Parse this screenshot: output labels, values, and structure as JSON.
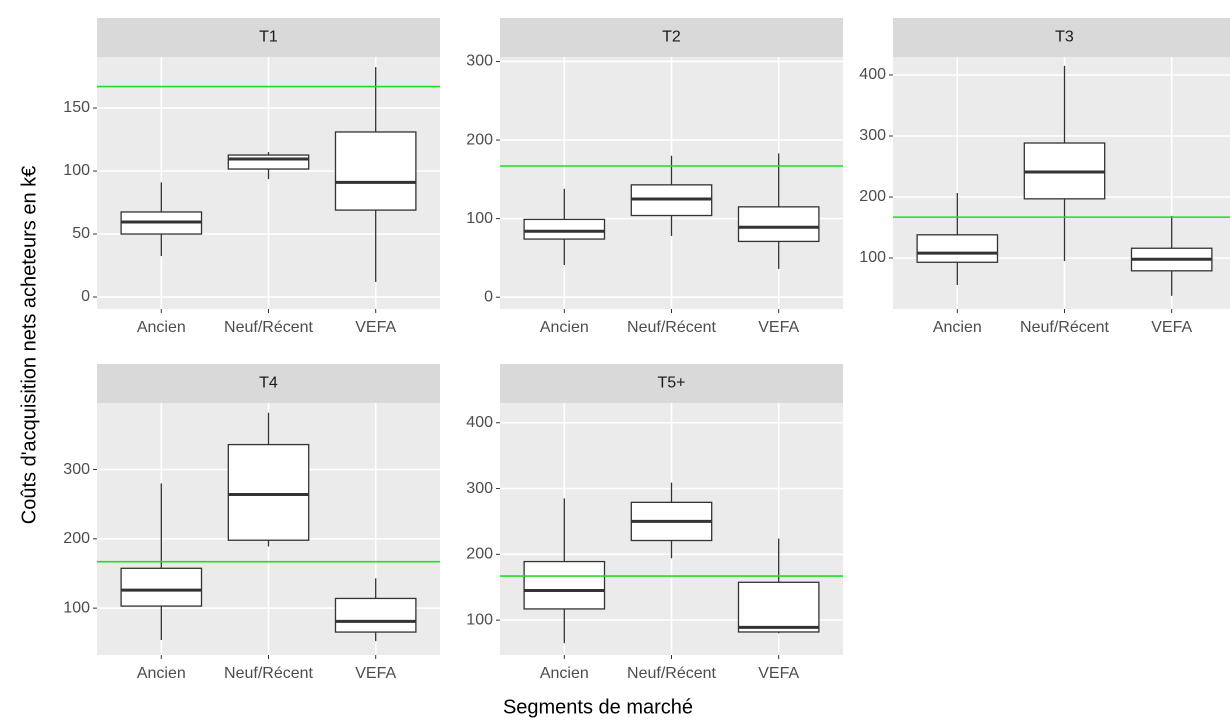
{
  "y_label": "Coûts d'acquisition nets acheteurs en k€",
  "x_label": "Segments de marché",
  "chart_data": [
    {
      "type": "boxplot",
      "title": "T1",
      "categories": [
        "Ancien",
        "Neuf/Récent",
        "VEFA"
      ],
      "boxes": [
        {
          "min": 32.5,
          "q1": 50,
          "median": 59.5,
          "q3": 67.5,
          "max": 91
        },
        {
          "min": 93.6,
          "q1": 101.6,
          "median": 109.5,
          "q3": 112.7,
          "max": 115
        },
        {
          "min": 12,
          "q1": 69,
          "median": 91,
          "q3": 131,
          "max": 182.5
        }
      ],
      "ylim": [
        -9.5,
        190.5
      ],
      "yticks": [
        0,
        50,
        100,
        150
      ],
      "reference_line": {
        "value": 167,
        "color": "#22dd22"
      },
      "grid": true
    },
    {
      "type": "boxplot",
      "title": "T2",
      "categories": [
        "Ancien",
        "Neuf/Récent",
        "VEFA"
      ],
      "boxes": [
        {
          "min": 41,
          "q1": 74,
          "median": 84,
          "q3": 99,
          "max": 138
        },
        {
          "min": 78,
          "q1": 104,
          "median": 125,
          "q3": 143,
          "max": 180
        },
        {
          "min": 36,
          "q1": 71,
          "median": 89,
          "q3": 115,
          "max": 183
        }
      ],
      "ylim": [
        -15,
        305.7
      ],
      "yticks": [
        0,
        100,
        200,
        300
      ],
      "reference_line": {
        "value": 167,
        "color": "#22dd22"
      },
      "grid": true
    },
    {
      "type": "boxplot",
      "title": "T3",
      "categories": [
        "Ancien",
        "Neuf/Récent",
        "VEFA"
      ],
      "boxes": [
        {
          "min": 55.7,
          "q1": 93,
          "median": 108,
          "q3": 138,
          "max": 206.5
        },
        {
          "min": 95,
          "q1": 197,
          "median": 241,
          "q3": 288.5,
          "max": 415
        },
        {
          "min": 38,
          "q1": 79,
          "median": 98,
          "q3": 116,
          "max": 169
        }
      ],
      "ylim": [
        16.4,
        429.5
      ],
      "yticks": [
        100,
        200,
        300,
        400
      ],
      "reference_line": {
        "value": 167,
        "color": "#22dd22"
      },
      "grid": true
    },
    {
      "type": "boxplot",
      "title": "T4",
      "categories": [
        "Ancien",
        "Neuf/Récent",
        "VEFA"
      ],
      "boxes": [
        {
          "min": 54,
          "q1": 103,
          "median": 126,
          "q3": 157.5,
          "max": 280
        },
        {
          "min": 189,
          "q1": 198,
          "median": 264,
          "q3": 336,
          "max": 382
        },
        {
          "min": 52.5,
          "q1": 65.5,
          "median": 81,
          "q3": 114,
          "max": 143
        }
      ],
      "ylim": [
        32.4,
        396
      ],
      "yticks": [
        100,
        200,
        300
      ],
      "reference_line": {
        "value": 167,
        "color": "#22dd22"
      },
      "grid": true
    },
    {
      "type": "boxplot",
      "title": "T5+",
      "categories": [
        "Ancien",
        "Neuf/Récent",
        "VEFA"
      ],
      "boxes": [
        {
          "min": 65,
          "q1": 117,
          "median": 145,
          "q3": 189,
          "max": 285
        },
        {
          "min": 194,
          "q1": 221,
          "median": 250,
          "q3": 279,
          "max": 309
        },
        {
          "min": 80,
          "q1": 82,
          "median": 89,
          "q3": 157.5,
          "max": 224
        }
      ],
      "ylim": [
        47,
        430
      ],
      "yticks": [
        100,
        200,
        300,
        400
      ],
      "reference_line": {
        "value": 167,
        "color": "#22dd22"
      },
      "grid": true
    }
  ]
}
